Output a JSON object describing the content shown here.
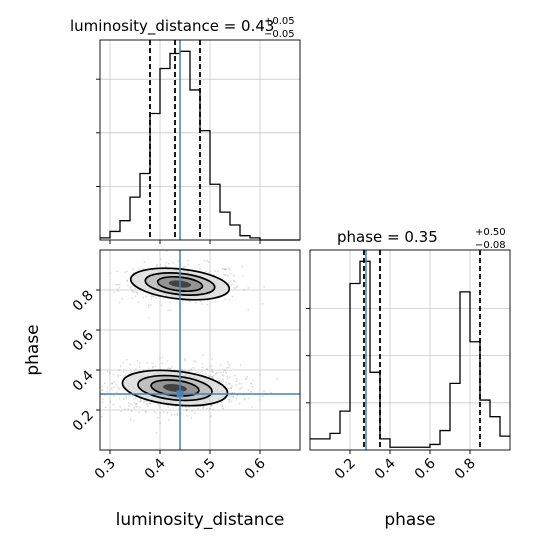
{
  "chart_data": {
    "type": "corner",
    "parameters": [
      "luminosity_distance",
      "phase"
    ],
    "truths": {
      "luminosity_distance": 0.44,
      "phase": 0.28
    },
    "grid": true,
    "luminosity_distance": {
      "title_text": "luminosity_distance = 0.43",
      "title_sup": "+0.05",
      "title_sub": "−0.05",
      "median": 0.43,
      "quantiles": [
        0.38,
        0.43,
        0.48
      ],
      "xlim": [
        0.28,
        0.68
      ],
      "xticks": [
        0.3,
        0.4,
        0.5,
        0.6
      ],
      "xtick_labels": [
        "0.3",
        "0.4",
        "0.5",
        "0.6"
      ],
      "xlabel": "luminosity_distance",
      "histogram": {
        "bin_edges": [
          0.28,
          0.3,
          0.32,
          0.34,
          0.36,
          0.38,
          0.4,
          0.42,
          0.44,
          0.46,
          0.48,
          0.5,
          0.52,
          0.54,
          0.56,
          0.58,
          0.6,
          0.62,
          0.64,
          0.66,
          0.68
        ],
        "counts": [
          1,
          4,
          9,
          20,
          31,
          59,
          80,
          87,
          88,
          70,
          51,
          26,
          13,
          7,
          2,
          1,
          0,
          0,
          0,
          0
        ]
      }
    },
    "phase": {
      "title_text": "phase = 0.35",
      "title_sup": "+0.50",
      "title_sub": "−0.08",
      "median": 0.35,
      "quantiles": [
        0.27,
        0.35,
        0.85
      ],
      "xlim": [
        0.0,
        1.0
      ],
      "xticks": [
        0.2,
        0.4,
        0.6,
        0.8
      ],
      "xtick_labels": [
        "0.2",
        "0.4",
        "0.6",
        "0.8"
      ],
      "ylim": [
        0.0,
        1.0
      ],
      "yticks": [
        0.2,
        0.4,
        0.6,
        0.8
      ],
      "ytick_labels": [
        "0.2",
        "0.4",
        "0.6",
        "0.8"
      ],
      "xlabel": "phase",
      "ylabel": "phase",
      "histogram": {
        "bin_edges": [
          0.0,
          0.05,
          0.1,
          0.15,
          0.2,
          0.25,
          0.3,
          0.35,
          0.4,
          0.45,
          0.5,
          0.55,
          0.6,
          0.65,
          0.7,
          0.75,
          0.8,
          0.85,
          0.9,
          0.95,
          1.0
        ],
        "counts": [
          4,
          4,
          6,
          14,
          60,
          68,
          28,
          4,
          1,
          1,
          1,
          1,
          2,
          7,
          24,
          57,
          39,
          18,
          12,
          5
        ]
      }
    },
    "joint": {
      "clusters": [
        {
          "center": [
            0.44,
            0.83
          ],
          "sigma": [
            0.045,
            0.04
          ],
          "weight": 0.3
        },
        {
          "center": [
            0.43,
            0.31
          ],
          "sigma": [
            0.048,
            0.045
          ],
          "weight": 0.7
        }
      ]
    }
  }
}
